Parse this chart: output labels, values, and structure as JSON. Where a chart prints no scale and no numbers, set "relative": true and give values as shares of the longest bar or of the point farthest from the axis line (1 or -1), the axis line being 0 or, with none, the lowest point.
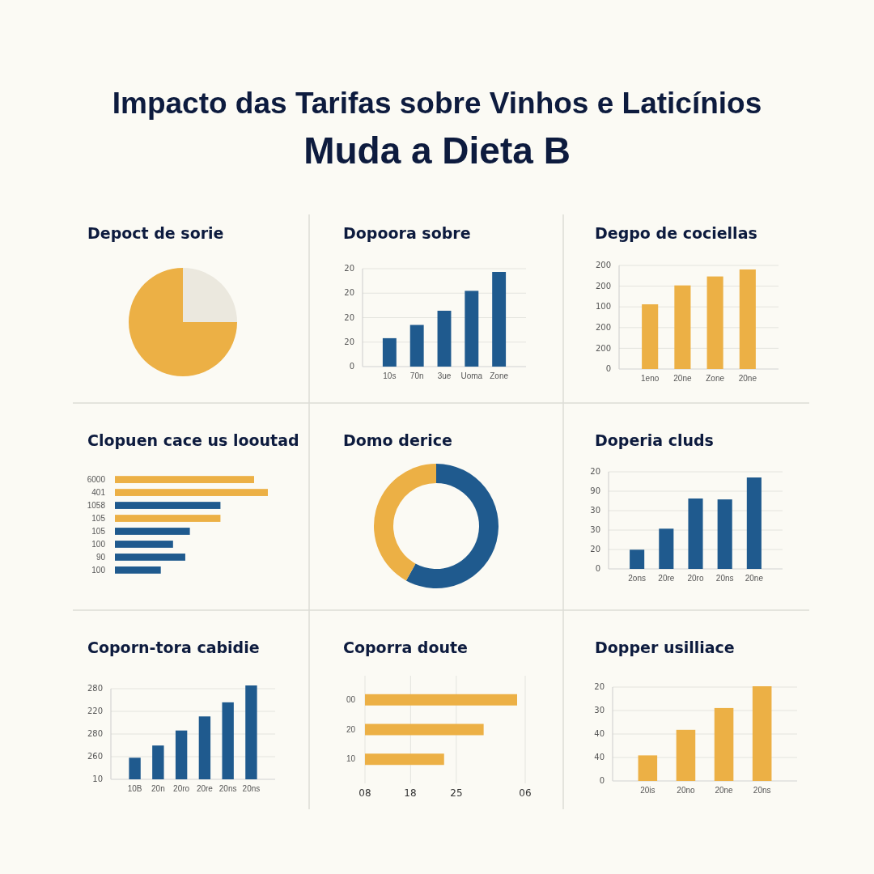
{
  "chart_data": [
    {
      "type": "other",
      "title": "Impacto das Tarifas sobre Vinhos e Laticínios",
      "subtitle": "Muda a Dieta B"
    },
    {
      "type": "pie",
      "title": "Depoct de sorie",
      "categories": [
        null,
        null
      ],
      "values": [
        25,
        75
      ],
      "colors": [
        "#ebe8de",
        "#ecb045"
      ]
    },
    {
      "type": "bar",
      "title": "Dopoora sobre",
      "relative": true,
      "categories": [
        "10s",
        "70n",
        "3ue",
        "Uoma",
        "Zone"
      ],
      "series": [
        {
          "color": "#1f5a8e",
          "values": [
            0.3,
            0.44,
            0.59,
            0.8,
            1
          ]
        }
      ],
      "annotations": [
        "0",
        "20",
        "20",
        "20",
        "20"
      ],
      "grid": "y"
    },
    {
      "type": "bar",
      "title": "Degpo de cociellas",
      "relative": true,
      "categories": [
        "1eno",
        "20ne",
        "Zone",
        "20ne"
      ],
      "series": [
        {
          "color": "#ecb045",
          "values": [
            0.65,
            0.84,
            0.93,
            1
          ]
        }
      ],
      "annotations": [
        "0",
        "200",
        "200",
        "100",
        "200",
        "200"
      ],
      "grid": "y"
    },
    {
      "type": "bar",
      "title": "Clopuen cace us looutad",
      "orientation": "horizontal",
      "relative": true,
      "categories": [
        "6000",
        "401",
        "1058",
        "105",
        "105",
        "100",
        "90",
        "100"
      ],
      "values": [
        0.91,
        1,
        0.69,
        0.69,
        0.49,
        0.38,
        0.46,
        0.3
      ],
      "colors": [
        "#ecb045",
        "#ecb045",
        "#1f5a8e",
        "#ecb045",
        "#1f5a8e",
        "#1f5a8e",
        "#1f5a8e",
        "#1f5a8e"
      ]
    },
    {
      "type": "donut",
      "title": "Domo derice",
      "categories": [
        null,
        null
      ],
      "values": [
        58,
        42
      ],
      "colors": [
        "#1f5a8e",
        "#ecb045"
      ]
    },
    {
      "type": "bar",
      "title": "Doperia cluds",
      "relative": true,
      "categories": [
        "2ons",
        "20re",
        "20ro",
        "20ns",
        "20ne"
      ],
      "series": [
        {
          "color": "#1f5a8e",
          "values": [
            0.21,
            0.44,
            0.77,
            0.76,
            1
          ]
        }
      ],
      "annotations": [
        "0",
        "20",
        "30",
        "30",
        "90",
        "20"
      ],
      "grid": "y"
    },
    {
      "type": "bar",
      "title": "Coporn-tora cabidie",
      "relative": true,
      "categories": [
        "10B",
        "20n",
        "20ro",
        "20re",
        "20ns",
        "20ns"
      ],
      "series": [
        {
          "color": "#1f5a8e",
          "values": [
            0.23,
            0.36,
            0.52,
            0.67,
            0.82,
            1
          ]
        }
      ],
      "annotations": [
        "10",
        "260",
        "280",
        "220",
        "280"
      ],
      "grid": "y"
    },
    {
      "type": "bar",
      "title": "Coporra doute",
      "orientation": "horizontal",
      "relative": true,
      "categories": [
        "00",
        "20",
        "10"
      ],
      "series": [
        {
          "color": "#ecb045",
          "values": [
            1,
            0.78,
            0.52
          ]
        }
      ],
      "annotations": [
        "08",
        "18",
        "25",
        "06"
      ],
      "ref_lines": [
        {
          "axis": "x",
          "value": 0.3,
          "color": "#e4e4de"
        },
        {
          "axis": "x",
          "value": 0.6,
          "color": "#e4e4de"
        }
      ]
    },
    {
      "type": "bar",
      "title": "Dopper usilliace",
      "relative": true,
      "categories": [
        "20is",
        "20no",
        "20ne",
        "20ns"
      ],
      "series": [
        {
          "color": "#ecb045",
          "values": [
            0.27,
            0.54,
            0.77,
            1
          ]
        }
      ],
      "annotations": [
        "0",
        "40",
        "40",
        "30",
        "20"
      ],
      "grid": "y"
    }
  ]
}
